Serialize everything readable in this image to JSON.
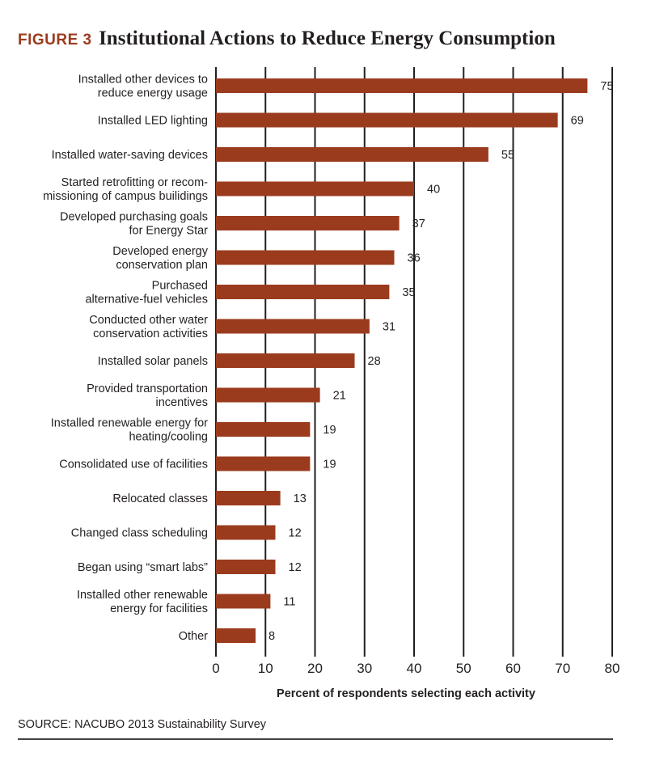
{
  "figure": {
    "label": "FIGURE 3",
    "title": "Institutional Actions to Reduce Energy Consumption",
    "source": "SOURCE: NACUBO 2013 Sustainability Survey"
  },
  "colors": {
    "bar": "#9b3b1e",
    "accent": "#9b3b1e",
    "text": "#231f20",
    "grid": "#231f20"
  },
  "chart_data": {
    "type": "bar",
    "orientation": "horizontal",
    "title": "Institutional Actions to Reduce Energy Consumption",
    "xlabel": "Percent of respondents selecting each activity",
    "ylabel": "",
    "xlim": [
      0,
      80
    ],
    "xticks": [
      0,
      10,
      20,
      30,
      40,
      50,
      60,
      70,
      80
    ],
    "grid": "vertical",
    "categories": [
      [
        "Installed other devices to",
        "reduce energy usage"
      ],
      [
        "Installed LED lighting"
      ],
      [
        "Installed water-saving devices"
      ],
      [
        "Started retrofitting or recom-",
        "missioning of campus builidings"
      ],
      [
        "Developed purchasing goals",
        "for Energy Star"
      ],
      [
        "Developed energy",
        "conservation plan"
      ],
      [
        "Purchased",
        "alternative-fuel vehicles"
      ],
      [
        "Conducted other water",
        "conservation activities"
      ],
      [
        "Installed solar panels"
      ],
      [
        "Provided transportation",
        "incentives"
      ],
      [
        "Installed renewable energy for",
        "heating/cooling"
      ],
      [
        "Consolidated use of facilities"
      ],
      [
        "Relocated classes"
      ],
      [
        "Changed class scheduling"
      ],
      [
        "Began using “smart labs”"
      ],
      [
        "Installed other renewable",
        "energy for facilities"
      ],
      [
        "Other"
      ]
    ],
    "values": [
      75,
      69,
      55,
      40,
      37,
      36,
      35,
      31,
      28,
      21,
      19,
      19,
      13,
      12,
      12,
      11,
      8
    ],
    "value_labels": [
      "75",
      "69",
      "55",
      "40",
      "37",
      "36",
      "35",
      "31",
      "28",
      "21",
      "19",
      "19",
      "13",
      "12",
      "12",
      "11",
      "8"
    ]
  }
}
